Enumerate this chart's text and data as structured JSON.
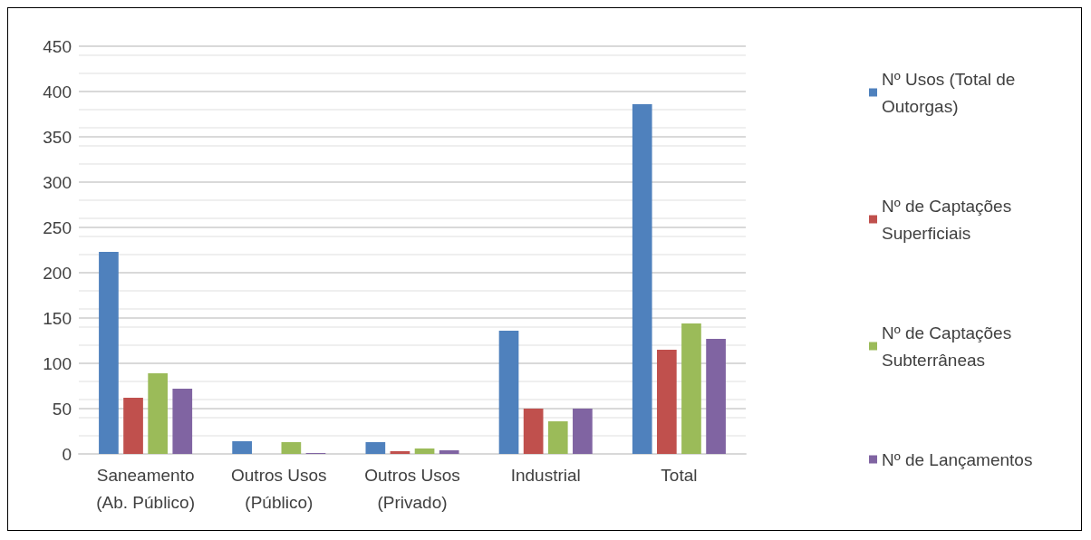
{
  "chart_data": {
    "type": "bar",
    "categories": [
      "Saneamento\n(Ab. Público)",
      "Outros Usos\n(Público)",
      "Outros Usos\n(Privado)",
      "Industrial",
      "Total"
    ],
    "series": [
      {
        "name": "Nº Usos (Total de Outorgas)",
        "color": "#4f81bd",
        "values": [
          223,
          14,
          13,
          136,
          386
        ]
      },
      {
        "name": "Nº de Captações Superficiais",
        "color": "#c0504d",
        "values": [
          62,
          0,
          3,
          50,
          115
        ]
      },
      {
        "name": "Nº de Captações Subterrâneas",
        "color": "#9bbb59",
        "values": [
          89,
          13,
          6,
          36,
          144
        ]
      },
      {
        "name": "Nº de Lançamentos",
        "color": "#8064a2",
        "values": [
          72,
          1,
          4,
          50,
          127
        ]
      }
    ],
    "ylim": [
      0,
      450
    ],
    "yticks": [
      0,
      50,
      100,
      150,
      200,
      250,
      300,
      350,
      400,
      450
    ],
    "grid": "y",
    "legend": "right"
  }
}
